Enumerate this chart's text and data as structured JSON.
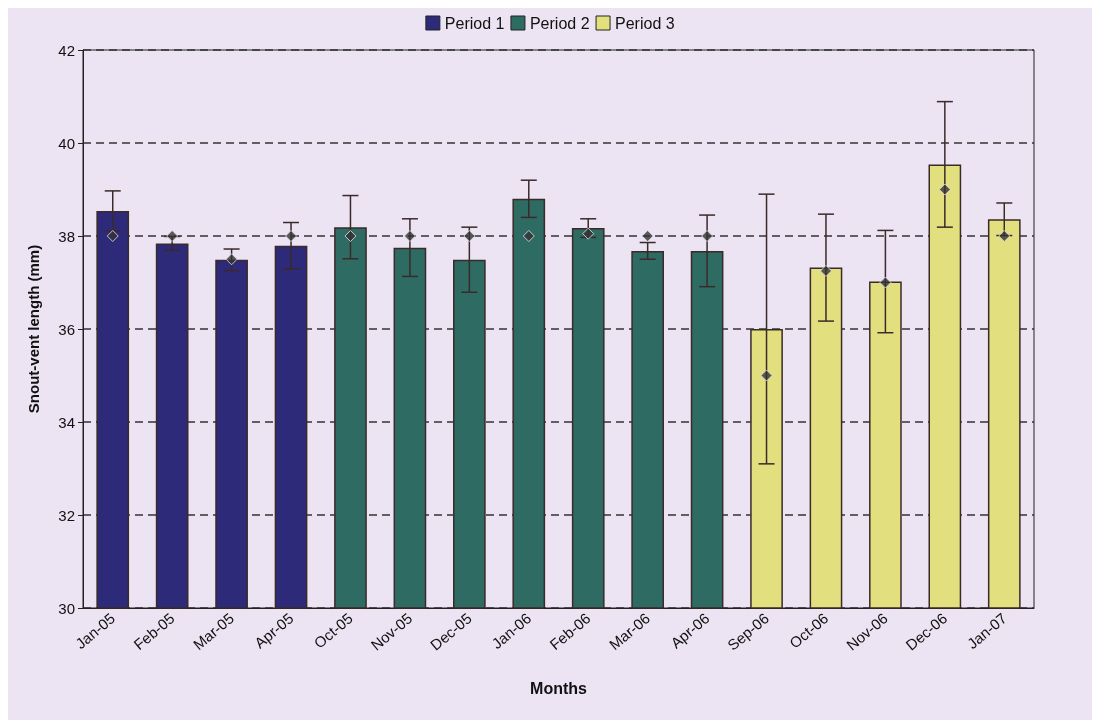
{
  "chart_data": {
    "type": "bar",
    "xlabel": "Months",
    "ylabel": "Snout-vent length (mm)",
    "categories": [
      "Jan-05",
      "Feb-05",
      "Mar-05",
      "Apr-05",
      "Oct-05",
      "Nov-05",
      "Dec-05",
      "Jan-06",
      "Feb-06",
      "Mar-06",
      "Apr-06",
      "Sep-06",
      "Oct-06",
      "Nov-06",
      "Dec-06",
      "Jan-07"
    ],
    "series": [
      {
        "name": "Period 1",
        "color": "#2e2a7a",
        "values": [
          38.54,
          37.84,
          37.49,
          37.79,
          null,
          null,
          null,
          null,
          null,
          null,
          null,
          null,
          null,
          null,
          null,
          null
        ],
        "errors": [
          0.43,
          0.15,
          0.23,
          0.5,
          null,
          null,
          null,
          null,
          null,
          null,
          null,
          null,
          null,
          null,
          null,
          null
        ]
      },
      {
        "name": "Period 2",
        "color": "#2e6b63",
        "values": [
          null,
          null,
          null,
          null,
          38.19,
          37.75,
          37.49,
          38.8,
          38.17,
          37.68,
          37.68,
          null,
          null,
          null,
          null,
          null
        ],
        "errors": [
          null,
          null,
          null,
          null,
          0.68,
          0.62,
          0.7,
          0.4,
          0.2,
          0.18,
          0.77,
          null,
          null,
          null,
          null,
          null
        ]
      },
      {
        "name": "Period 3",
        "color": "#e2e07e",
        "values": [
          null,
          null,
          null,
          null,
          null,
          null,
          null,
          null,
          null,
          null,
          null,
          36.0,
          37.32,
          37.02,
          39.54,
          38.36
        ],
        "errors": [
          null,
          null,
          null,
          null,
          null,
          null,
          null,
          null,
          null,
          null,
          null,
          2.9,
          1.15,
          1.1,
          1.35,
          0.35
        ]
      },
      {
        "type": "scatter",
        "color": "#333333",
        "marker": "diamond",
        "x": [
          "Jan-05",
          "Feb-05",
          "Mar-05",
          "Apr-05",
          "Oct-05",
          "Nov-05",
          "Dec-05",
          "Jan-06",
          "Feb-06",
          "Mar-06",
          "Apr-06",
          "Sep-06",
          "Oct-06",
          "Nov-06",
          "Dec-06",
          "Jan-07"
        ],
        "values": [
          38,
          38,
          37.5,
          38,
          38,
          38,
          38,
          38,
          38.05,
          38,
          38,
          35,
          37.25,
          37,
          39,
          38
        ]
      }
    ],
    "ylim": [
      30,
      42
    ],
    "yticks": [
      30,
      32,
      34,
      36,
      38,
      40,
      42
    ],
    "grid": "y",
    "legend": "top"
  }
}
